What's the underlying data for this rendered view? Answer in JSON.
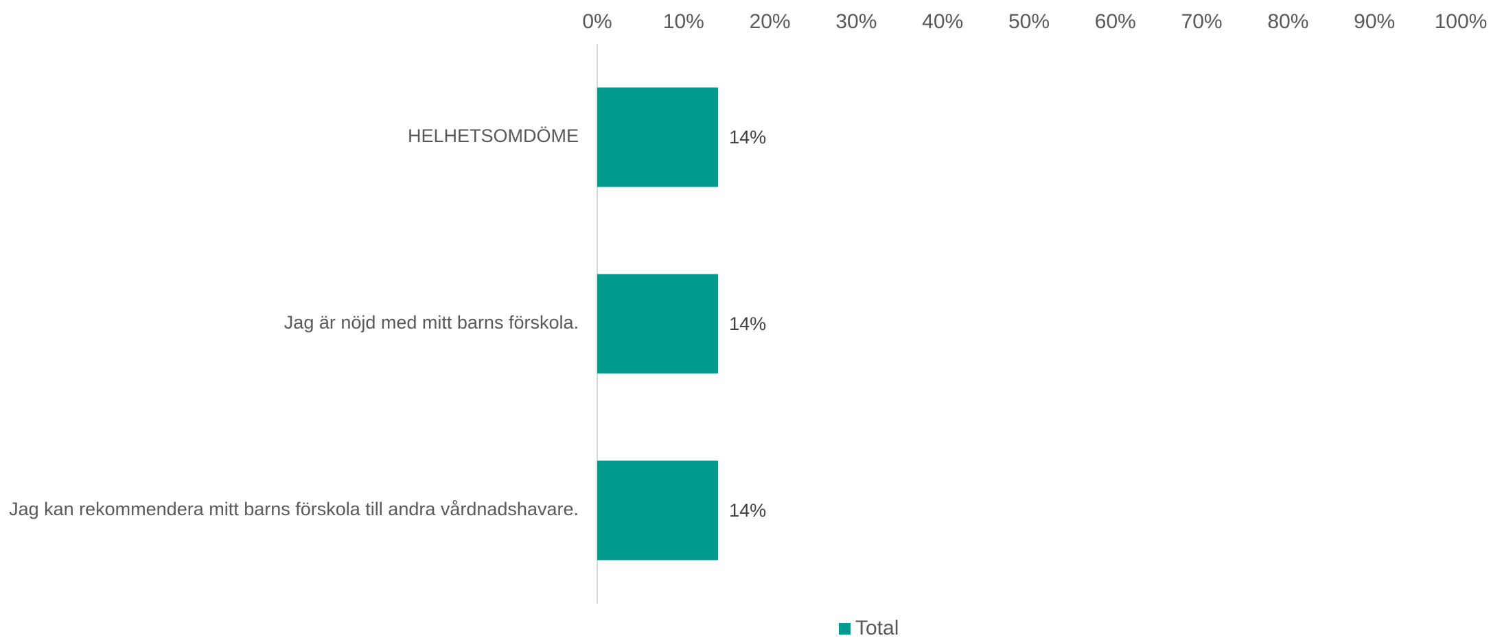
{
  "chart_data": {
    "type": "bar",
    "orientation": "horizontal",
    "categories": [
      "HELHETSOMDÖME",
      "Jag är nöjd med mitt barns förskola.",
      "Jag kan rekommendera mitt barns förskola till andra vårdnadshavare."
    ],
    "series": [
      {
        "name": "Total",
        "values": [
          14,
          14,
          14
        ],
        "color": "#009A8E"
      }
    ],
    "data_labels": [
      "14%",
      "14%",
      "14%"
    ],
    "xlim": [
      0,
      100
    ],
    "x_ticks": [
      0,
      10,
      20,
      30,
      40,
      50,
      60,
      70,
      80,
      90,
      100
    ],
    "x_tick_labels": [
      "0%",
      "10%",
      "20%",
      "30%",
      "40%",
      "50%",
      "60%",
      "70%",
      "80%",
      "90%",
      "100%"
    ],
    "x_axis_position": "top",
    "grid": false,
    "legend_position": "bottom"
  }
}
